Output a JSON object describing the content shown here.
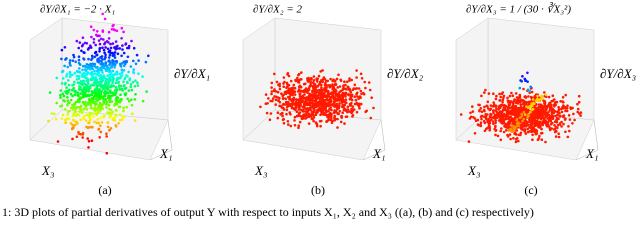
{
  "panels": [
    {
      "formula": "∂Y/∂X₁ = −2 · X₁",
      "z_label": "∂Y/∂X₁",
      "x_label": "X₁",
      "y_label": "X₃",
      "label": "(a)"
    },
    {
      "formula": "∂Y/∂X₂ = 2",
      "z_label": "∂Y/∂X₂",
      "x_label": "X₁",
      "y_label": "X₃",
      "label": "(b)"
    },
    {
      "formula": "∂Y/∂X₃ = 1 / (30 · ∛X₃²)",
      "z_label": "∂Y/∂X₃",
      "x_label": "X₁",
      "y_label": "X₃",
      "label": "(c)"
    }
  ],
  "caption": "1:  3D plots of partial derivatives of output Y with respect to inputs X₁, X₂ and X₃ ((a), (b) and (c) respectively)"
}
